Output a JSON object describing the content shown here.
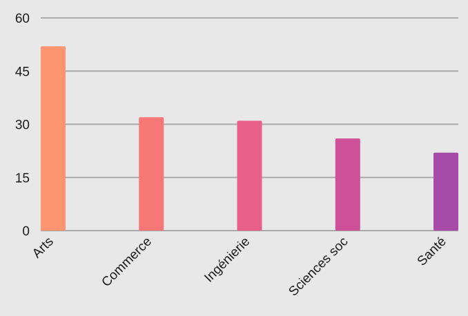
{
  "chart_data": {
    "type": "bar",
    "title": "",
    "xlabel": "",
    "ylabel": "",
    "categories": [
      "Arts",
      "Commerce",
      "Ingénierie",
      "Sciences soc",
      "Santé"
    ],
    "values": [
      52,
      32,
      31,
      26,
      22
    ],
    "colors": [
      "#ff9470",
      "#f87878",
      "#e8608a",
      "#ce5098",
      "#a64ca8"
    ],
    "ylim": [
      0,
      60
    ],
    "yticks": [
      0,
      15,
      30,
      45,
      60
    ],
    "grid": true,
    "legend": "none"
  }
}
